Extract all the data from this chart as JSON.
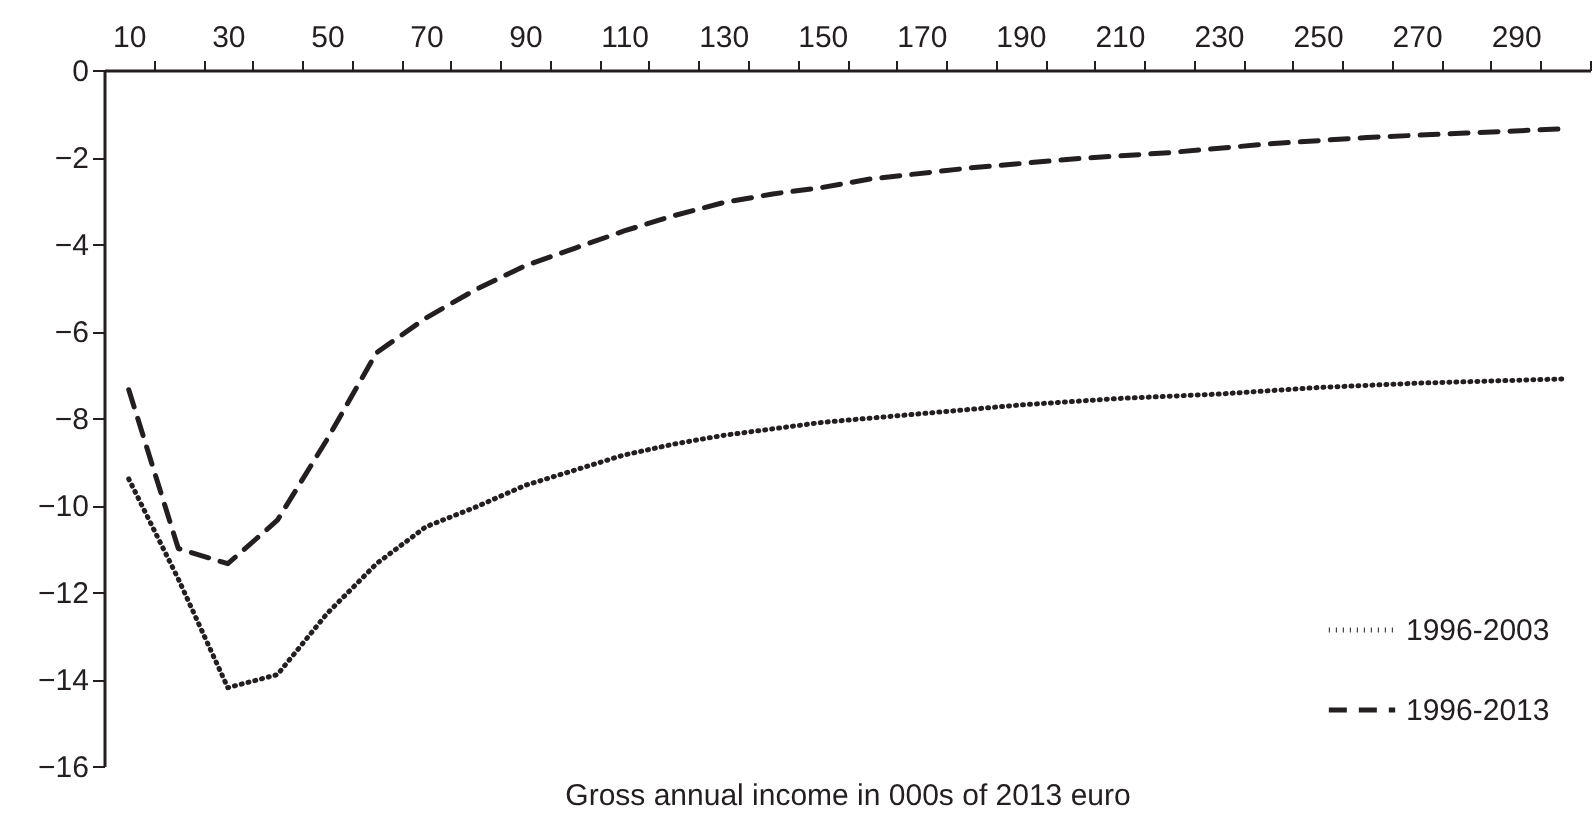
{
  "chart_data": {
    "type": "line",
    "xlabel": "Gross annual income in 000s of 2013 euro",
    "xlim": [
      5,
      305
    ],
    "ylim": [
      -16,
      0
    ],
    "xticks": [
      10,
      {
        "value": 15,
        "label": null
      },
      {
        "value": 25,
        "label": null
      },
      30,
      {
        "value": 35,
        "label": null
      },
      {
        "value": 45,
        "label": null
      },
      50,
      {
        "value": 55,
        "label": null
      },
      {
        "value": 65,
        "label": null
      },
      70,
      {
        "value": 75,
        "label": null
      },
      {
        "value": 85,
        "label": null
      },
      90,
      {
        "value": 95,
        "label": null
      },
      {
        "value": 105,
        "label": null
      },
      110,
      {
        "value": 115,
        "label": null
      },
      {
        "value": 125,
        "label": null
      },
      130,
      {
        "value": 135,
        "label": null
      },
      {
        "value": 145,
        "label": null
      },
      150,
      {
        "value": 155,
        "label": null
      },
      {
        "value": 165,
        "label": null
      },
      170,
      {
        "value": 175,
        "label": null
      },
      {
        "value": 185,
        "label": null
      },
      190,
      {
        "value": 195,
        "label": null
      },
      {
        "value": 205,
        "label": null
      },
      210,
      {
        "value": 215,
        "label": null
      },
      {
        "value": 225,
        "label": null
      },
      230,
      {
        "value": 235,
        "label": null
      },
      {
        "value": 245,
        "label": null
      },
      250,
      {
        "value": 255,
        "label": null
      },
      {
        "value": 265,
        "label": null
      },
      270,
      {
        "value": 275,
        "label": null
      },
      {
        "value": 285,
        "label": null
      },
      290,
      {
        "value": 295,
        "label": null
      },
      {
        "value": 305,
        "label": null
      }
    ],
    "yticks": [
      -16,
      -14,
      -12,
      -10,
      -8,
      -6,
      -4,
      -2,
      0
    ],
    "grid": false,
    "legend": "bottom right",
    "marker": "none",
    "series": [
      {
        "name": "1996-2003",
        "color": "#231f20",
        "line_style": "dotted",
        "x": [
          10,
          20,
          30,
          40,
          50,
          60,
          70,
          80,
          90,
          100,
          110,
          120,
          130,
          140,
          150,
          170,
          190,
          210,
          230,
          250,
          270,
          300
        ],
        "values": [
          -9.4,
          -11.7,
          -14.2,
          -13.9,
          -12.5,
          -11.35,
          -10.5,
          -10.05,
          -9.55,
          -9.2,
          -8.85,
          -8.6,
          -8.4,
          -8.25,
          -8.1,
          -7.9,
          -7.7,
          -7.55,
          -7.45,
          -7.3,
          -7.2,
          -7.1
        ]
      },
      {
        "name": "1996-2013",
        "color": "#231f20",
        "line_style": "dashed",
        "x": [
          10,
          20,
          30,
          40,
          50,
          60,
          70,
          80,
          90,
          100,
          110,
          120,
          130,
          140,
          150,
          160,
          180,
          200,
          220,
          240,
          260,
          280,
          300
        ],
        "values": [
          -7.35,
          -11.0,
          -11.35,
          -10.35,
          -8.5,
          -6.5,
          -5.7,
          -5.05,
          -4.5,
          -4.1,
          -3.7,
          -3.35,
          -3.05,
          -2.85,
          -2.7,
          -2.5,
          -2.25,
          -2.05,
          -1.9,
          -1.7,
          -1.55,
          -1.45,
          -1.35
        ]
      }
    ]
  }
}
